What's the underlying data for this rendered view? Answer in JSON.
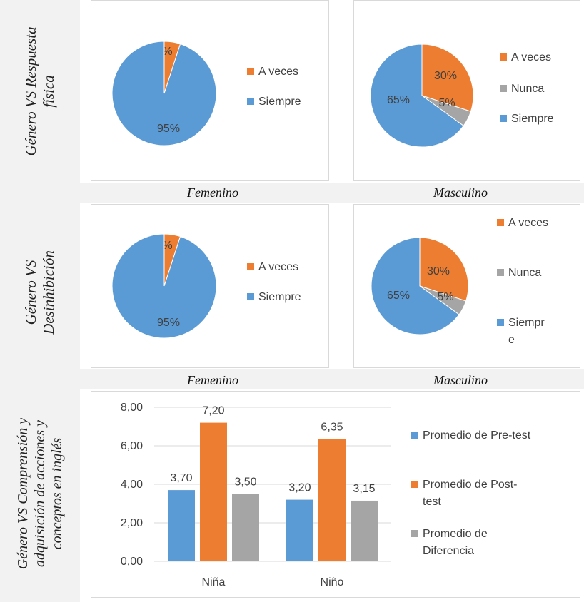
{
  "row_labels": [
    "Género VS Respuesta\nfísica",
    "Género VS\nDesinhibición",
    "Género VS Comprensión y\nadquisición de acciones y\nconceptos en inglés"
  ],
  "column_labels": {
    "femenino": "Femenino",
    "masculino": "Masculino"
  },
  "colors": {
    "orange": "#ed7d31",
    "gray": "#a5a5a5",
    "blue": "#5b9bd5"
  },
  "chart_data": [
    {
      "type": "pie",
      "slices": [
        {
          "label": "A veces",
          "value": 5,
          "display": "5%"
        },
        {
          "label": "Siempre",
          "value": 95,
          "display": "95%"
        }
      ],
      "legend": [
        "A veces",
        "Siempre"
      ]
    },
    {
      "type": "pie",
      "slices": [
        {
          "label": "A veces",
          "value": 30,
          "display": "30%"
        },
        {
          "label": "Nunca",
          "value": 5,
          "display": "5%"
        },
        {
          "label": "Siempre",
          "value": 65,
          "display": "65%"
        }
      ],
      "legend": [
        "A veces",
        "Nunca",
        "Siempre"
      ]
    },
    {
      "type": "pie",
      "slices": [
        {
          "label": "A veces",
          "value": 5,
          "display": "5%"
        },
        {
          "label": "Siempre",
          "value": 95,
          "display": "95%"
        }
      ],
      "legend": [
        "A veces",
        "Siempre"
      ]
    },
    {
      "type": "pie",
      "slices": [
        {
          "label": "A veces",
          "value": 30,
          "display": "30%"
        },
        {
          "label": "Nunca",
          "value": 5,
          "display": "5%"
        },
        {
          "label": "Siempre",
          "value": 65,
          "display": "65%"
        }
      ],
      "legend": [
        "A veces",
        "Nunca",
        "Siempr\ne"
      ]
    },
    {
      "type": "bar",
      "categories": [
        "Niña",
        "Niño"
      ],
      "series": [
        {
          "name": "Promedio de Pre-test",
          "values": [
            3.7,
            3.2
          ],
          "labels": [
            "3,70",
            "3,20"
          ]
        },
        {
          "name": "Promedio de Post-\ntest",
          "values": [
            7.2,
            6.35
          ],
          "labels": [
            "7,20",
            "6,35"
          ]
        },
        {
          "name": "Promedio de\nDiferencia",
          "values": [
            3.5,
            3.15
          ],
          "labels": [
            "3,50",
            "3,15"
          ]
        }
      ],
      "yticks": [
        "0,00",
        "2,00",
        "4,00",
        "6,00",
        "8,00"
      ],
      "ylim": [
        0,
        8
      ],
      "grid": true,
      "legend_position": "right"
    }
  ]
}
